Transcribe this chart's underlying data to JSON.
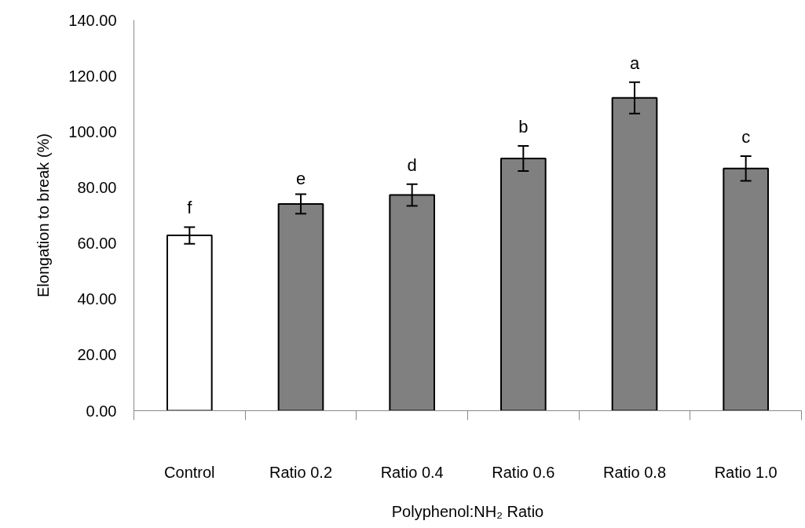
{
  "chart_data": {
    "type": "bar",
    "xlabel": "Polyphenol:NH₂ Ratio",
    "ylabel": "Elongation to break (%)",
    "categories": [
      "Control",
      "Ratio 0.2",
      "Ratio 0.4",
      "Ratio 0.6",
      "Ratio 0.8",
      "Ratio 1.0"
    ],
    "values": [
      62.8,
      74.1,
      77.3,
      90.4,
      112.1,
      86.8
    ],
    "errors": [
      3.0,
      3.5,
      3.9,
      4.5,
      5.6,
      4.4
    ],
    "colors": [
      "#ffffff",
      "#808080",
      "#808080",
      "#808080",
      "#808080",
      "#808080"
    ],
    "ylim": [
      0,
      140
    ],
    "yticks": [
      {
        "value": 0,
        "label": "0.00"
      },
      {
        "value": 20,
        "label": "20.00"
      },
      {
        "value": 40,
        "label": "40.00"
      },
      {
        "value": 60,
        "label": "60.00"
      },
      {
        "value": 80,
        "label": "80.00"
      },
      {
        "value": 100,
        "label": "100.00"
      },
      {
        "value": 120,
        "label": "120.00"
      },
      {
        "value": 140,
        "label": "140.00"
      }
    ],
    "grid": false,
    "annotations": [
      "f",
      "e",
      "d",
      "b",
      "a",
      "c"
    ]
  }
}
